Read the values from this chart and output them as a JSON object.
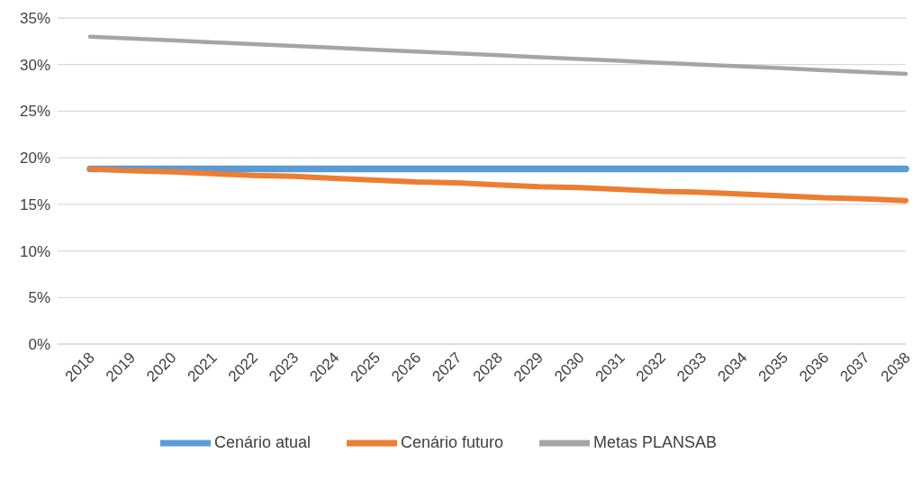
{
  "chart_data": {
    "type": "line",
    "categories": [
      "2018",
      "2019",
      "2020",
      "2021",
      "2022",
      "2023",
      "2024",
      "2025",
      "2026",
      "2027",
      "2028",
      "2029",
      "2030",
      "2031",
      "2032",
      "2033",
      "2034",
      "2035",
      "2036",
      "2037",
      "2038"
    ],
    "series": [
      {
        "name": "Cenário atual",
        "color": "#5b9bd5",
        "values": [
          18.8,
          18.8,
          18.8,
          18.8,
          18.8,
          18.8,
          18.8,
          18.8,
          18.8,
          18.8,
          18.8,
          18.8,
          18.8,
          18.8,
          18.8,
          18.8,
          18.8,
          18.8,
          18.8,
          18.8,
          18.8
        ]
      },
      {
        "name": "Cenário futuro",
        "color": "#ed7d31",
        "values": [
          18.8,
          18.6,
          18.5,
          18.3,
          18.1,
          18.0,
          17.8,
          17.6,
          17.4,
          17.3,
          17.1,
          16.9,
          16.8,
          16.6,
          16.4,
          16.3,
          16.1,
          15.9,
          15.7,
          15.6,
          15.4
        ]
      },
      {
        "name": "Metas PLANSAB",
        "color": "#a5a5a5",
        "values": [
          33.0,
          32.8,
          32.6,
          32.4,
          32.2,
          32.0,
          31.8,
          31.6,
          31.4,
          31.2,
          31.0,
          30.8,
          30.6,
          30.4,
          30.2,
          30.0,
          29.8,
          29.6,
          29.4,
          29.2,
          29.0
        ]
      }
    ],
    "ylim": [
      0,
      35
    ],
    "yticks": [
      {
        "value": 0,
        "label": "0%"
      },
      {
        "value": 5,
        "label": "5%"
      },
      {
        "value": 10,
        "label": "10%"
      },
      {
        "value": 15,
        "label": "15%"
      },
      {
        "value": 20,
        "label": "20%"
      },
      {
        "value": 25,
        "label": "25%"
      },
      {
        "value": 30,
        "label": "30%"
      },
      {
        "value": 35,
        "label": "35%"
      }
    ],
    "grid": "y",
    "legend": "bottom",
    "marker": "none",
    "line_style": "solid"
  }
}
